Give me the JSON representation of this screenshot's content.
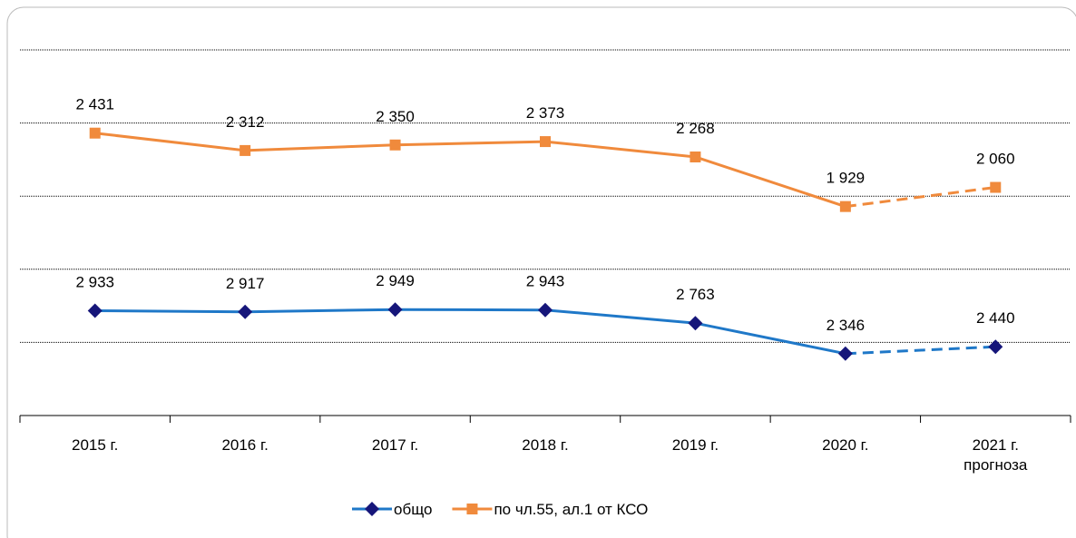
{
  "chart_data": {
    "type": "line",
    "categories": [
      "2015 г.",
      "2016 г.",
      "2017 г.",
      "2018 г.",
      "2019 г.",
      "2020 г.",
      "2021 г. прогноза"
    ],
    "series": [
      {
        "name": "общо",
        "color": "#1f78c8",
        "marker_color": "#16167a",
        "marker": "diamond",
        "dashed_from": 5,
        "values": [
          2933,
          2917,
          2949,
          2943,
          2763,
          2346,
          2440
        ],
        "value_labels": [
          "2 933",
          "2 917",
          "2 949",
          "2 943",
          "2 763",
          "2 346",
          "2 440"
        ]
      },
      {
        "name": "по чл.55, ал.1 от КСО",
        "color": "#f08a3c",
        "marker_color": "#f08a3c",
        "marker": "square",
        "dashed_from": 5,
        "axis": "y2",
        "values": [
          2431,
          2312,
          2350,
          2373,
          2268,
          1929,
          2060
        ],
        "value_labels": [
          "2 431",
          "2 312",
          "2 350",
          "2 373",
          "2 268",
          "1 929",
          "2 060"
        ]
      }
    ],
    "ylim": [
      1500,
      6500
    ],
    "yticks": [
      2500,
      3500,
      4500,
      5500,
      6500
    ],
    "y2lim": [
      500,
      3000
    ],
    "y2ticks": [],
    "grid": true,
    "legend": "bottom"
  }
}
